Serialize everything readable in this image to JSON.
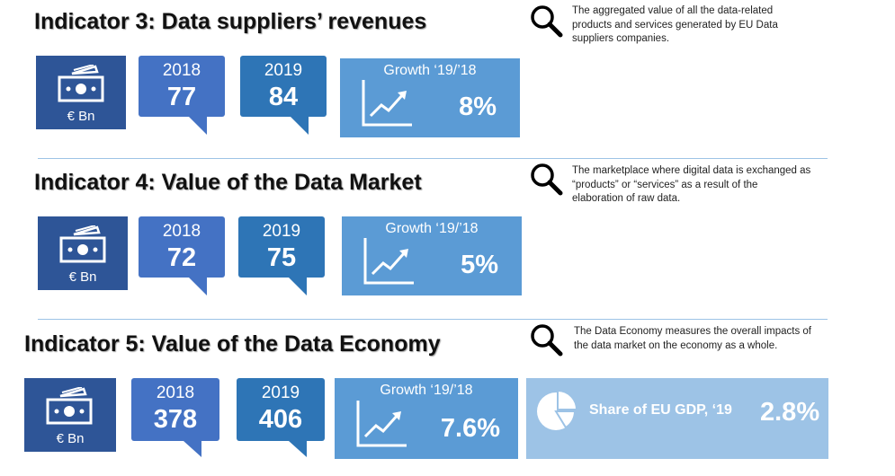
{
  "indicators": [
    {
      "title": "Indicator 3: Data suppliers’ revenues",
      "description": [
        "The aggregated value of all the data-related",
        "products and services generated by EU Data",
        "suppliers companies."
      ],
      "unit": "€ Bn",
      "year1": "2018",
      "value1": "77",
      "year2": "2019",
      "value2": "84",
      "growth_label": "Growth ‘19/’18",
      "growth_value": "8%"
    },
    {
      "title": "Indicator 4: Value of the Data Market",
      "description": [
        "The marketplace where digital data is exchanged as",
        "“products” or “services” as a result of the",
        "elaboration of raw data."
      ],
      "unit": "€ Bn",
      "year1": "2018",
      "value1": "72",
      "year2": "2019",
      "value2": "75",
      "growth_label": "Growth ‘19/’18",
      "growth_value": "5%"
    },
    {
      "title": "Indicator 5: Value of the Data Economy",
      "description": [
        "The Data Economy measures the overall impacts of",
        "the data market on the economy as a whole."
      ],
      "unit": "€ Bn",
      "year1": "2018",
      "value1": "378",
      "year2": "2019",
      "value2": "406",
      "growth_label": "Growth ‘19/’18",
      "growth_value": "7.6%",
      "share_label": "Share of EU GDP, ‘19",
      "share_value": "2.8%"
    }
  ],
  "icons": {
    "search": "magnifier-icon",
    "money": "banknote-icon",
    "growth": "trend-chart-icon",
    "share": "pie-chart-icon"
  },
  "colors": {
    "dark_blue": "#2e5597",
    "mid_blue": "#4472c4",
    "steel_blue": "#2e75b6",
    "light_blue": "#5b9bd5",
    "pale_blue": "#9dc3e6"
  }
}
